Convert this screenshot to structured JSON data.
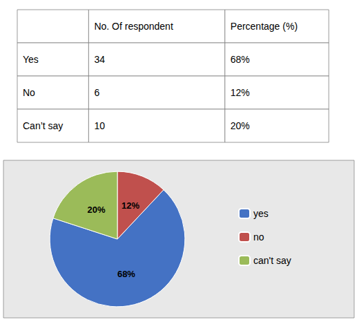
{
  "chart_data": {
    "type": "pie",
    "categories": [
      "yes",
      "no",
      "can't say"
    ],
    "values": [
      68,
      12,
      20
    ],
    "value_labels": [
      "68%",
      "12%",
      "20%"
    ],
    "colors": [
      "#4472C4",
      "#C0504D",
      "#9BBB59"
    ],
    "data_labels": true,
    "legend": "right",
    "table": {
      "columns": [
        null,
        "No. Of respondent",
        "Percentage (%)"
      ],
      "rows": [
        [
          "Yes",
          "34",
          "68%"
        ],
        [
          "No",
          "6",
          "12%"
        ],
        [
          "Can’t say",
          "10",
          "20%"
        ]
      ]
    }
  }
}
